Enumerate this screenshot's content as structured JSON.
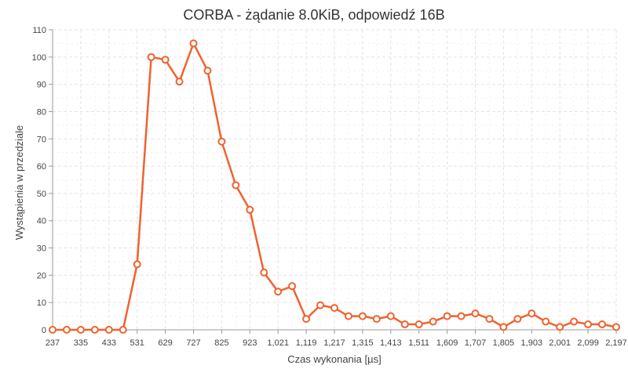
{
  "chart_data": {
    "type": "line",
    "title": "CORBA - żądanie 8.0KiB, odpowiedź 16B",
    "xlabel": "Czas wykonania [µs]",
    "ylabel": "Wystąpienia w przedziale",
    "xlim": [
      237,
      2197
    ],
    "ylim": [
      0,
      110
    ],
    "grid": true,
    "x_ticks": [
      "237",
      "335",
      "433",
      "531",
      "629",
      "727",
      "825",
      "923",
      "1,021",
      "1,119",
      "1,217",
      "1,315",
      "1,413",
      "1,511",
      "1,609",
      "1,707",
      "1,805",
      "1,903",
      "2,001",
      "2,099",
      "2,197"
    ],
    "y_ticks": [
      "0",
      "10",
      "20",
      "30",
      "40",
      "50",
      "60",
      "70",
      "80",
      "90",
      "100",
      "110"
    ],
    "series": [
      {
        "color": "#f0622e",
        "x": [
          237,
          286,
          335,
          384,
          433,
          482,
          531,
          580,
          629,
          678,
          727,
          776,
          825,
          874,
          923,
          972,
          1021,
          1070,
          1119,
          1168,
          1217,
          1266,
          1315,
          1364,
          1413,
          1462,
          1511,
          1560,
          1609,
          1658,
          1707,
          1756,
          1805,
          1854,
          1903,
          1952,
          2001,
          2050,
          2099,
          2148,
          2197
        ],
        "y": [
          0,
          0,
          0,
          0,
          0,
          0,
          24,
          100,
          99,
          91,
          105,
          95,
          69,
          53,
          44,
          21,
          14,
          16,
          4,
          9,
          8,
          5,
          5,
          4,
          5,
          2,
          2,
          3,
          5,
          5,
          6,
          4,
          1,
          4,
          6,
          3,
          1,
          3,
          2,
          2,
          1
        ]
      }
    ]
  }
}
